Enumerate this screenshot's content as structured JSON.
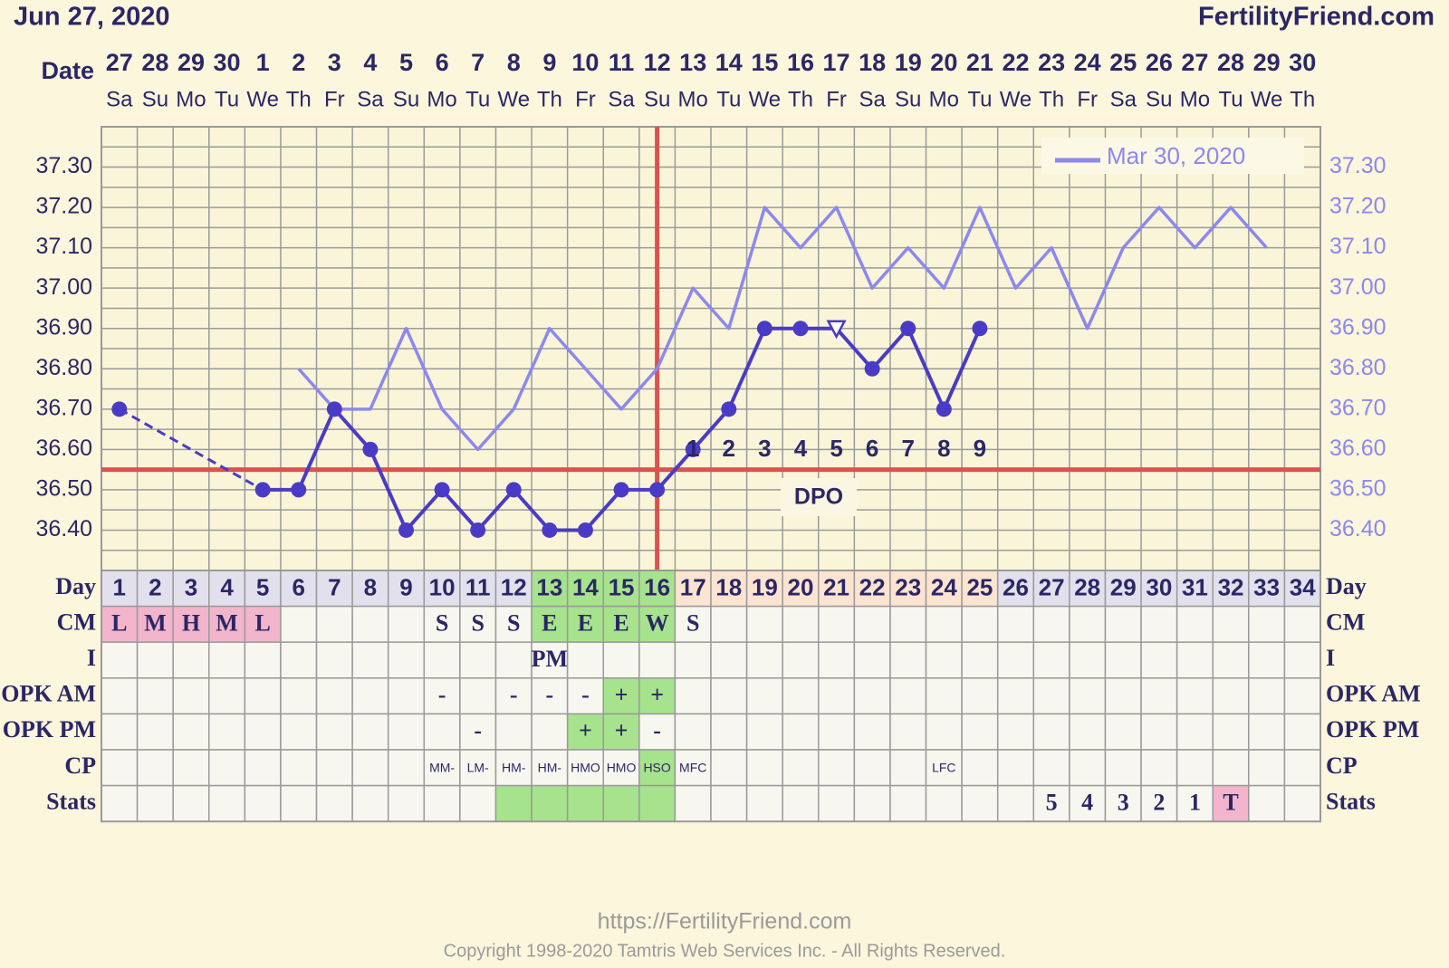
{
  "header": {
    "date": "Jun 27, 2020",
    "site": "FertilityFriend.com"
  },
  "chart_data": {
    "type": "line",
    "x_label": "Date",
    "categories": [
      "27",
      "28",
      "29",
      "30",
      "1",
      "2",
      "3",
      "4",
      "5",
      "6",
      "7",
      "8",
      "9",
      "10",
      "11",
      "12",
      "13",
      "14",
      "15",
      "16",
      "17",
      "18",
      "19",
      "20",
      "21",
      "22",
      "23",
      "24",
      "25",
      "26",
      "27",
      "28",
      "29",
      "30"
    ],
    "weekdays": [
      "Sa",
      "Su",
      "Mo",
      "Tu",
      "We",
      "Th",
      "Fr",
      "Sa",
      "Su",
      "Mo",
      "Tu",
      "We",
      "Th",
      "Fr",
      "Sa",
      "Su",
      "Mo",
      "Tu",
      "We",
      "Th",
      "Fr",
      "Sa",
      "Su",
      "Mo",
      "Tu",
      "We",
      "Th",
      "Fr",
      "Sa",
      "Su",
      "Mo",
      "Tu",
      "We",
      "Th"
    ],
    "ylim": [
      36.3,
      37.4
    ],
    "yticks": [
      {
        "value": 36.4,
        "label": "36.40"
      },
      {
        "value": 36.5,
        "label": "36.50"
      },
      {
        "value": 36.6,
        "label": "36.60"
      },
      {
        "value": 36.7,
        "label": "36.70"
      },
      {
        "value": 36.8,
        "label": "36.80"
      },
      {
        "value": 36.9,
        "label": "36.90"
      },
      {
        "value": 37.0,
        "label": "37.00"
      },
      {
        "value": 37.1,
        "label": "37.10"
      },
      {
        "value": 37.2,
        "label": "37.20"
      },
      {
        "value": 37.3,
        "label": "37.30"
      }
    ],
    "grid": true,
    "legend": "top-right",
    "coverline": 36.55,
    "coverline_color": "#d9534f",
    "ovulation_index": 15,
    "dpo_label": "DPO",
    "dpo_numbers": [
      null,
      null,
      null,
      null,
      null,
      null,
      null,
      null,
      null,
      null,
      null,
      null,
      null,
      null,
      null,
      null,
      "1",
      "2",
      "3",
      "4",
      "5",
      "6",
      "7",
      "8",
      "9",
      null,
      null,
      null,
      null,
      null,
      null,
      null,
      null,
      null
    ],
    "series": [
      {
        "color": "#4a3bc6",
        "dashed_gaps": true,
        "open_markers": [
          20
        ],
        "values": [
          36.7,
          null,
          null,
          null,
          36.5,
          36.5,
          36.7,
          36.6,
          36.4,
          36.5,
          36.4,
          36.5,
          36.4,
          36.4,
          36.5,
          36.5,
          36.6,
          36.7,
          36.9,
          36.9,
          36.9,
          36.8,
          36.9,
          36.7,
          36.9,
          null,
          null,
          null,
          null,
          null,
          null,
          null,
          null,
          null
        ]
      },
      {
        "name": "Mar 30, 2020",
        "color": "#8c88f0",
        "values": [
          null,
          null,
          null,
          null,
          null,
          36.8,
          36.7,
          36.7,
          36.9,
          36.7,
          36.6,
          36.7,
          36.9,
          36.8,
          36.7,
          36.8,
          37.0,
          36.9,
          37.2,
          37.1,
          37.2,
          37.0,
          37.1,
          37.0,
          37.2,
          37.0,
          37.1,
          36.9,
          37.1,
          37.2,
          37.1,
          37.2,
          37.1,
          null
        ]
      }
    ]
  },
  "table": {
    "palette": {
      "l": "#e2e0ec",
      "g": "#a6e38c",
      "o": "#fde4d0",
      "p": "#f2b5cc",
      "w": "#f8f7ef"
    },
    "rows": [
      {
        "label": "Day",
        "fills": "llllllllllllggggooooooooolllllllll",
        "cells": [
          "1",
          "2",
          "3",
          "4",
          "5",
          "6",
          "7",
          "8",
          "9",
          "10",
          "11",
          "12",
          "13",
          "14",
          "15",
          "16",
          "17",
          "18",
          "19",
          "20",
          "21",
          "22",
          "23",
          "24",
          "25",
          "26",
          "27",
          "28",
          "29",
          "30",
          "31",
          "32",
          "33",
          "34"
        ]
      },
      {
        "label": "CM",
        "fills": "pppppwwwwwwwggggwwwwwwwwwwwwwwwwww",
        "cells": [
          "L",
          "M",
          "H",
          "M",
          "L",
          null,
          null,
          null,
          null,
          "S",
          "S",
          "S",
          "E",
          "E",
          "E",
          "W",
          "S",
          null,
          null,
          null,
          null,
          null,
          null,
          null,
          null,
          null,
          null,
          null,
          null,
          null,
          null,
          null,
          null,
          null
        ]
      },
      {
        "label": "I",
        "fills": "wwwwwwwwwwwwwwwwwwwwwwwwwwwwwwwwww",
        "cells": [
          null,
          null,
          null,
          null,
          null,
          null,
          null,
          null,
          null,
          null,
          null,
          null,
          "PM",
          null,
          null,
          null,
          null,
          null,
          null,
          null,
          null,
          null,
          null,
          null,
          null,
          null,
          null,
          null,
          null,
          null,
          null,
          null,
          null,
          null
        ]
      },
      {
        "label": "OPK AM",
        "fills": "wwwwwwwwwwwwwwggwwwwwwwwwwwwwwwwww",
        "cells": [
          null,
          null,
          null,
          null,
          null,
          null,
          null,
          null,
          null,
          "-",
          null,
          "-",
          "-",
          "-",
          "+",
          "+",
          null,
          null,
          null,
          null,
          null,
          null,
          null,
          null,
          null,
          null,
          null,
          null,
          null,
          null,
          null,
          null,
          null,
          null
        ]
      },
      {
        "label": "OPK PM",
        "fills": "wwwwwwwwwwwwwggwwwwwwwwwwwwwwwwwww",
        "cells": [
          null,
          null,
          null,
          null,
          null,
          null,
          null,
          null,
          null,
          null,
          "-",
          null,
          null,
          "+",
          "+",
          "-",
          null,
          null,
          null,
          null,
          null,
          null,
          null,
          null,
          null,
          null,
          null,
          null,
          null,
          null,
          null,
          null,
          null,
          null
        ]
      },
      {
        "label": "CP",
        "fills": "wwwwwwwwwwwwwwwgwwwwwwwwwwwwwwwwww",
        "small": true,
        "cells": [
          null,
          null,
          null,
          null,
          null,
          null,
          null,
          null,
          null,
          "MM-",
          "LM-",
          "HM-",
          "HM-",
          "HMO",
          "HMO",
          "HSO",
          "MFC",
          null,
          null,
          null,
          null,
          null,
          null,
          "LFC",
          null,
          null,
          null,
          null,
          null,
          null,
          null,
          null,
          null,
          null
        ]
      },
      {
        "label": "Stats",
        "fills": "wwwwwwwwwwwgggggwwwwwwwwwwwwwwwpww",
        "cells": [
          null,
          null,
          null,
          null,
          null,
          null,
          null,
          null,
          null,
          null,
          null,
          null,
          null,
          null,
          null,
          null,
          null,
          null,
          null,
          null,
          null,
          null,
          null,
          null,
          null,
          null,
          "5",
          "4",
          "3",
          "2",
          "1",
          "T",
          null,
          null
        ]
      }
    ]
  },
  "footer": {
    "url": "https://FertilityFriend.com",
    "copyright": "Copyright 1998-2020 Tamtris Web Services Inc. - All Rights Reserved."
  }
}
